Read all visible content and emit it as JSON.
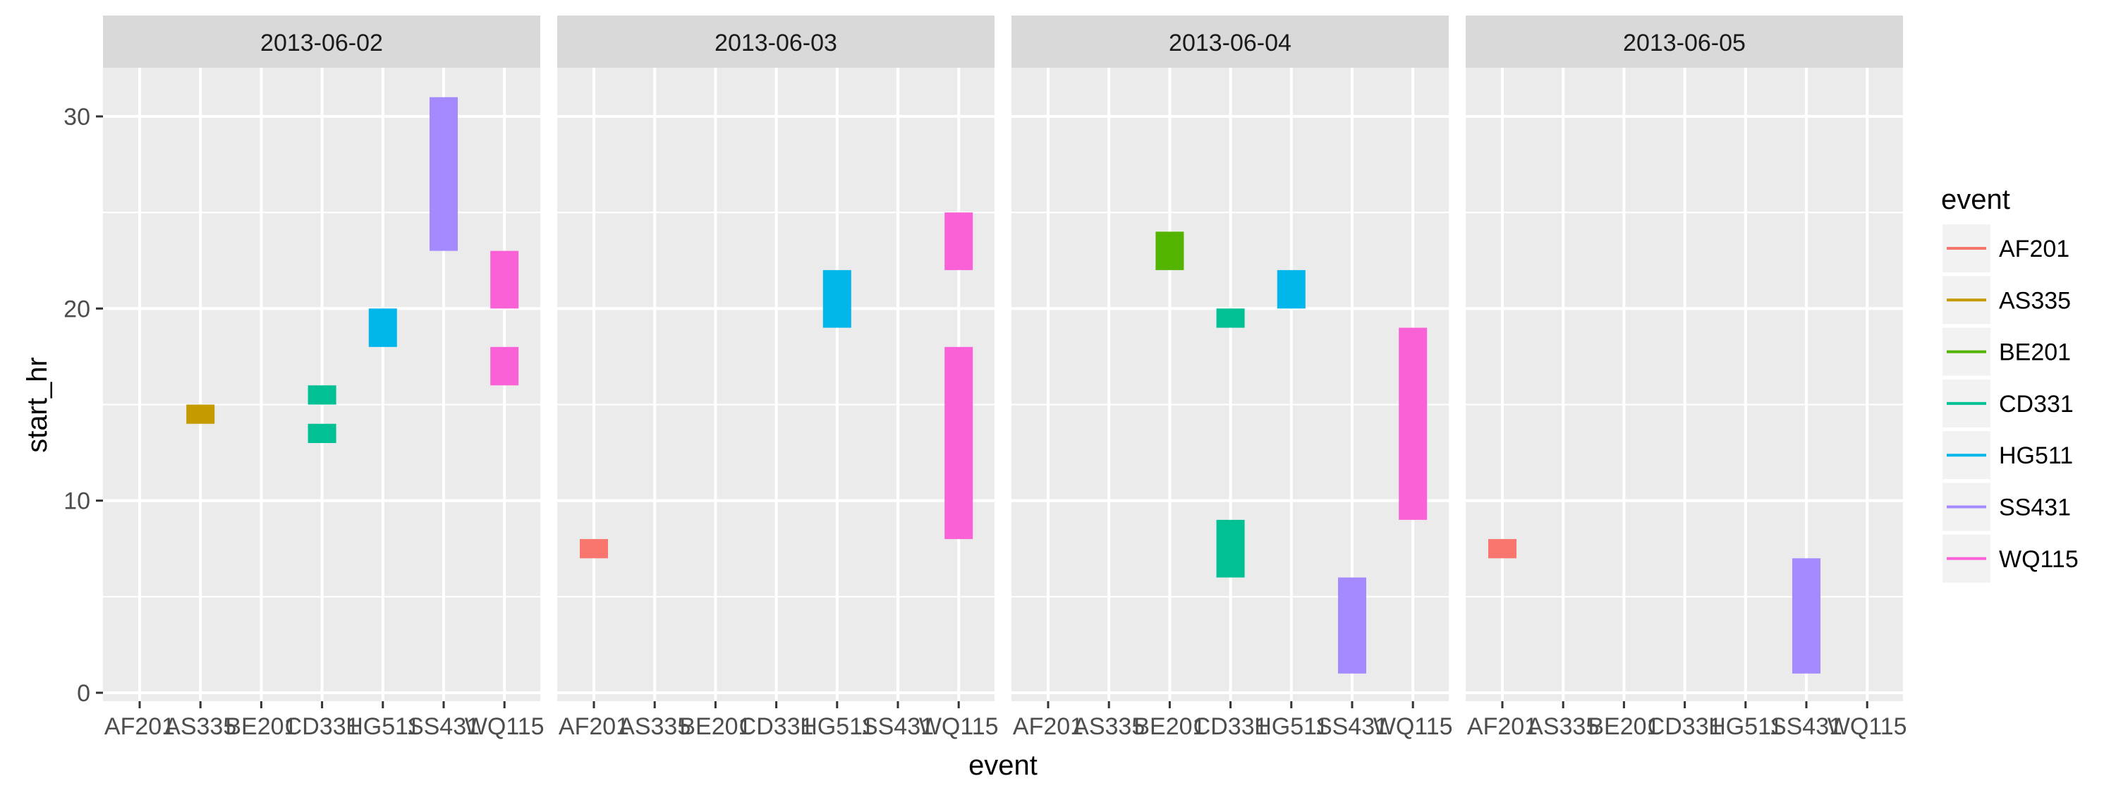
{
  "chart_data": {
    "type": "bar",
    "chart_subtype": "faceted floating bars (ggplot2 linerange)",
    "xlabel": "event",
    "ylabel": "start_hr",
    "ylim": [
      0,
      33
    ],
    "yticks": [
      0,
      10,
      20,
      30
    ],
    "categories": [
      "AF201",
      "AS335",
      "BE201",
      "CD331",
      "HG511",
      "SS431",
      "WQ115"
    ],
    "grid": true,
    "legend": {
      "title": "event",
      "position": "right",
      "entries": [
        "AF201",
        "AS335",
        "BE201",
        "CD331",
        "HG511",
        "SS431",
        "WQ115"
      ]
    },
    "colors": {
      "AF201": "#F8766D",
      "AS335": "#C49A00",
      "BE201": "#53B400",
      "CD331": "#00C094",
      "HG511": "#00B6EB",
      "SS431": "#A58AFF",
      "WQ115": "#FB61D7"
    },
    "panel_background": "#EBEBEB",
    "strip_background": "#D9D9D9",
    "facets": [
      {
        "label": "2013-06-02",
        "bars": [
          {
            "event": "AS335",
            "ymin": 14,
            "ymax": 15
          },
          {
            "event": "CD331",
            "ymin": 15,
            "ymax": 16
          },
          {
            "event": "CD331",
            "ymin": 13,
            "ymax": 14
          },
          {
            "event": "HG511",
            "ymin": 18,
            "ymax": 20
          },
          {
            "event": "SS431",
            "ymin": 23,
            "ymax": 31
          },
          {
            "event": "WQ115",
            "ymin": 20,
            "ymax": 23
          },
          {
            "event": "WQ115",
            "ymin": 16,
            "ymax": 18
          }
        ]
      },
      {
        "label": "2013-06-03",
        "bars": [
          {
            "event": "AF201",
            "ymin": 7,
            "ymax": 8
          },
          {
            "event": "HG511",
            "ymin": 19,
            "ymax": 22
          },
          {
            "event": "WQ115",
            "ymin": 22,
            "ymax": 25
          },
          {
            "event": "WQ115",
            "ymin": 8,
            "ymax": 18
          }
        ]
      },
      {
        "label": "2013-06-04",
        "bars": [
          {
            "event": "BE201",
            "ymin": 22,
            "ymax": 24
          },
          {
            "event": "CD331",
            "ymin": 19,
            "ymax": 20
          },
          {
            "event": "CD331",
            "ymin": 6,
            "ymax": 9
          },
          {
            "event": "HG511",
            "ymin": 20,
            "ymax": 22
          },
          {
            "event": "SS431",
            "ymin": 1,
            "ymax": 6
          },
          {
            "event": "WQ115",
            "ymin": 9,
            "ymax": 19
          }
        ]
      },
      {
        "label": "2013-06-05",
        "bars": [
          {
            "event": "AF201",
            "ymin": 7,
            "ymax": 8
          },
          {
            "event": "SS431",
            "ymin": 1,
            "ymax": 7
          }
        ]
      }
    ]
  }
}
